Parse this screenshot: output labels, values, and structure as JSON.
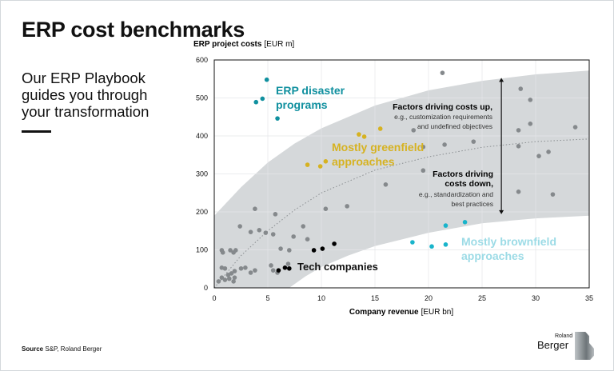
{
  "header": {
    "title": "ERP cost benchmarks",
    "subtitle_lines": [
      "Our ERP Playbook",
      "guides you through",
      "your transformation"
    ]
  },
  "source": {
    "label": "Source",
    "text": "S&P, Roland Berger"
  },
  "logo": {
    "small": "Roland",
    "large": "Berger"
  },
  "colors": {
    "gray_point": "#85898c",
    "band": "#d5d8da",
    "disaster": "#10909f",
    "greenfield": "#d6b221",
    "brownfield_point": "#19b4cb",
    "brownfield_label": "#9cdbe6",
    "tech": "#000000"
  },
  "chart_data": {
    "type": "scatter",
    "ylabel_bold": "ERP project costs",
    "ylabel_unit": "[EUR m]",
    "xlabel_bold": "Company revenue",
    "xlabel_unit": "[EUR bn]",
    "xlim": [
      0,
      35
    ],
    "ylim": [
      0,
      600
    ],
    "xticks": [
      "0",
      "5",
      "10",
      "15",
      "20",
      "25",
      "30",
      "35"
    ],
    "yticks": [
      "0",
      "100",
      "200",
      "300",
      "400",
      "500",
      "600"
    ],
    "grid": true,
    "series": [
      {
        "name": "",
        "color": "#85898c",
        "points": [
          [
            21.3,
            566
          ],
          [
            28.6,
            524
          ],
          [
            29.5,
            495
          ],
          [
            29.5,
            432
          ],
          [
            28.4,
            415
          ],
          [
            33.7,
            423
          ],
          [
            18.6,
            415
          ],
          [
            19.5,
            371
          ],
          [
            21.5,
            377
          ],
          [
            24.2,
            385
          ],
          [
            28.4,
            373
          ],
          [
            31.2,
            358
          ],
          [
            30.3,
            347
          ],
          [
            19.5,
            309
          ],
          [
            16,
            272
          ],
          [
            28.4,
            253
          ],
          [
            31.6,
            246
          ],
          [
            3.8,
            208
          ],
          [
            5.7,
            194
          ],
          [
            10.4,
            208
          ],
          [
            12.4,
            215
          ],
          [
            2.4,
            162
          ],
          [
            3.4,
            147
          ],
          [
            4.2,
            152
          ],
          [
            4.8,
            145
          ],
          [
            5.5,
            141
          ],
          [
            8.3,
            162
          ],
          [
            7.4,
            135
          ],
          [
            8.7,
            128
          ],
          [
            6.2,
            103
          ],
          [
            7.0,
            99
          ],
          [
            0.7,
            99
          ],
          [
            0.8,
            93
          ],
          [
            1.5,
            99
          ],
          [
            1.8,
            93
          ],
          [
            2.0,
            99
          ],
          [
            0.7,
            53
          ],
          [
            1.0,
            51
          ],
          [
            2.5,
            51
          ],
          [
            2.9,
            53
          ],
          [
            1.9,
            44
          ],
          [
            1.6,
            38
          ],
          [
            1.3,
            34
          ],
          [
            0.7,
            27
          ],
          [
            1.9,
            27
          ],
          [
            1.0,
            21
          ],
          [
            1.4,
            24
          ],
          [
            0.4,
            17
          ],
          [
            1.8,
            17
          ],
          [
            3.4,
            40
          ],
          [
            3.8,
            46
          ],
          [
            5.3,
            59
          ],
          [
            5.5,
            46
          ],
          [
            5.9,
            40
          ],
          [
            6.9,
            63
          ]
        ]
      },
      {
        "name": "Tech companies",
        "color": "#000000",
        "points": [
          [
            6.0,
            46
          ],
          [
            6.6,
            53
          ],
          [
            7.0,
            51
          ],
          [
            9.3,
            99
          ],
          [
            10.1,
            103
          ],
          [
            11.2,
            116
          ]
        ]
      },
      {
        "name": "ERP disaster programs",
        "color": "#10909f",
        "points": [
          [
            4.9,
            548
          ],
          [
            3.9,
            489
          ],
          [
            4.5,
            498
          ],
          [
            5.9,
            446
          ]
        ]
      },
      {
        "name": "Mostly greenfield approaches",
        "color": "#d6b221",
        "points": [
          [
            13.5,
            404
          ],
          [
            14.0,
            398
          ],
          [
            15.5,
            419
          ],
          [
            8.7,
            324
          ],
          [
            9.9,
            320
          ],
          [
            10.4,
            333
          ]
        ]
      },
      {
        "name": "Mostly brownfield approaches",
        "color": "#19b4cb",
        "points": [
          [
            23.4,
            173
          ],
          [
            21.6,
            164
          ],
          [
            18.5,
            120
          ],
          [
            20.3,
            109
          ],
          [
            21.6,
            114
          ]
        ]
      }
    ],
    "band_upper": [
      [
        0,
        190
      ],
      [
        2.5,
        265
      ],
      [
        5,
        330
      ],
      [
        7.5,
        380
      ],
      [
        10,
        420
      ],
      [
        15,
        480
      ],
      [
        20,
        520
      ],
      [
        25,
        545
      ],
      [
        30,
        562
      ],
      [
        35,
        572
      ]
    ],
    "band_lower": [
      [
        7,
        0
      ],
      [
        8.5,
        30
      ],
      [
        10,
        55
      ],
      [
        12.5,
        85
      ],
      [
        15,
        110
      ],
      [
        20,
        145
      ],
      [
        25,
        170
      ],
      [
        30,
        183
      ],
      [
        35,
        190
      ]
    ],
    "trend": [
      [
        0,
        0
      ],
      [
        2.5,
        85
      ],
      [
        5,
        150
      ],
      [
        7.5,
        205
      ],
      [
        10,
        250
      ],
      [
        15,
        310
      ],
      [
        20,
        345
      ],
      [
        25,
        370
      ],
      [
        30,
        385
      ],
      [
        35,
        392
      ]
    ],
    "annotations": {
      "disaster": [
        "ERP disaster",
        "programs"
      ],
      "greenfield": [
        "Mostly greenfield",
        "approaches"
      ],
      "brownfield": [
        "Mostly brownfield",
        "approaches"
      ],
      "tech": "Tech companies",
      "up_title": "Factors driving costs up,",
      "up_text": [
        "e.g., customization requirements",
        "and undefined objectives"
      ],
      "down_title": [
        "Factors driving",
        "costs down,"
      ],
      "down_text": [
        "e.g., standardization and",
        "best practices"
      ]
    },
    "arrow": {
      "x": 26.8,
      "top": 553,
      "bottom": 194
    }
  }
}
